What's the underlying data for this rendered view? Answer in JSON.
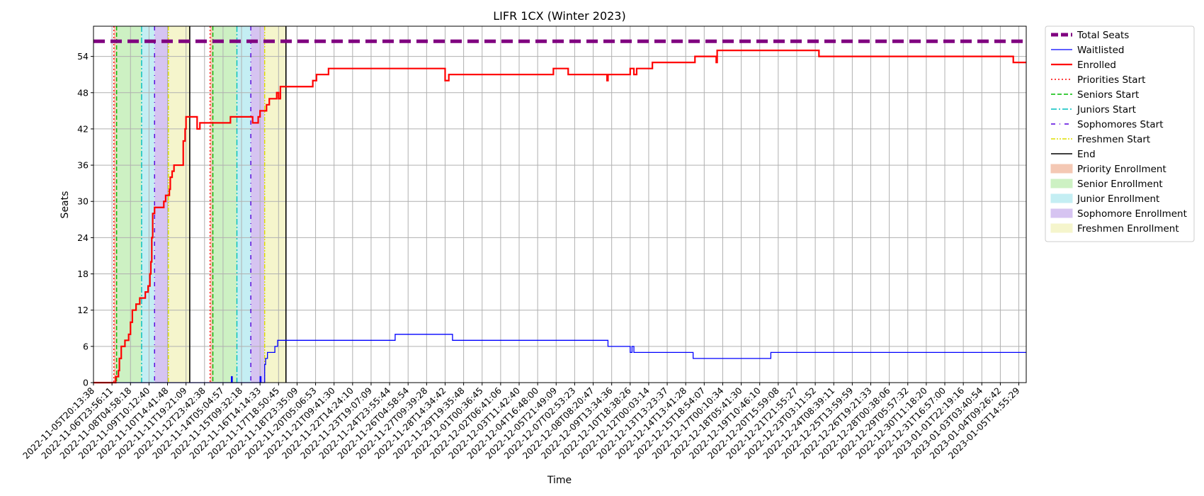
{
  "chart_data": {
    "type": "line",
    "title": "LIFR 1CX (Winter 2023)",
    "xlabel": "Time",
    "ylabel": "Seats",
    "ylim": [
      0,
      59
    ],
    "yticks": [
      0,
      6,
      12,
      18,
      24,
      30,
      36,
      42,
      48,
      54
    ],
    "grid": true,
    "legend_position": "outside-right",
    "x_tick_labels": [
      "2022-11-05T20:13:38",
      "2022-11-06T23:56:11",
      "2022-11-08T04:58:18",
      "2022-11-09T10:12:40",
      "2022-11-10T14:41:48",
      "2022-11-11T19:21:09",
      "2022-11-12T23:42:38",
      "2022-11-14T05:04:57",
      "2022-11-15T09:32:18",
      "2022-11-16T14:14:33",
      "2022-11-17T18:50:45",
      "2022-11-18T23:35:09",
      "2022-11-20T05:06:53",
      "2022-11-21T09:41:30",
      "2022-11-22T14:24:10",
      "2022-11-23T19:07:09",
      "2022-11-24T23:55:44",
      "2022-11-26T04:58:54",
      "2022-11-27T09:39:28",
      "2022-11-28T14:34:42",
      "2022-11-29T19:35:48",
      "2022-12-01T00:36:45",
      "2022-12-02T06:41:06",
      "2022-12-03T11:42:40",
      "2022-12-04T16:48:00",
      "2022-12-05T21:49:09",
      "2022-12-07T02:53:23",
      "2022-12-08T08:20:47",
      "2022-12-09T13:34:36",
      "2022-12-10T18:38:26",
      "2022-12-12T00:03:14",
      "2022-12-13T13:23:37",
      "2022-12-14T13:41:28",
      "2022-12-15T18:54:07",
      "2022-12-17T00:10:34",
      "2022-12-18T05:41:30",
      "2022-12-19T10:46:10",
      "2022-12-20T15:59:08",
      "2022-12-21T21:55:27",
      "2022-12-23T03:11:52",
      "2022-12-24T08:39:11",
      "2022-12-25T13:59:59",
      "2022-12-26T19:21:33",
      "2022-12-28T00:38:06",
      "2022-12-29T05:57:32",
      "2022-12-30T11:18:20",
      "2022-12-31T16:57:00",
      "2023-01-01T22:19:16",
      "2023-01-03T03:40:54",
      "2023-01-04T09:26:42",
      "2023-01-05T14:55:29"
    ],
    "x_domain": [
      0,
      50.4
    ],
    "total_seats": 56.5,
    "series": [
      {
        "name": "Total Seats",
        "color": "#800080",
        "points": [
          [
            0,
            56.5
          ],
          [
            50.4,
            56.5
          ]
        ]
      },
      {
        "name": "Waitlisted",
        "color": "#0000ff",
        "points": [
          [
            0,
            0
          ],
          [
            7.45,
            0
          ],
          [
            7.45,
            1
          ],
          [
            7.5,
            1
          ],
          [
            7.5,
            0
          ],
          [
            9.0,
            0
          ],
          [
            9.0,
            1
          ],
          [
            9.05,
            1
          ],
          [
            9.05,
            0
          ],
          [
            9.25,
            0
          ],
          [
            9.25,
            3
          ],
          [
            9.3,
            3
          ],
          [
            9.3,
            4
          ],
          [
            9.4,
            4
          ],
          [
            9.4,
            5
          ],
          [
            9.8,
            5
          ],
          [
            9.8,
            6
          ],
          [
            9.95,
            6
          ],
          [
            9.95,
            7
          ],
          [
            16.3,
            7
          ],
          [
            16.3,
            8
          ],
          [
            19.4,
            8
          ],
          [
            19.4,
            7
          ],
          [
            27.8,
            7
          ],
          [
            27.8,
            6
          ],
          [
            29.0,
            6
          ],
          [
            29.0,
            5
          ],
          [
            29.1,
            5
          ],
          [
            29.1,
            6
          ],
          [
            29.2,
            6
          ],
          [
            29.2,
            5
          ],
          [
            32.4,
            5
          ],
          [
            32.4,
            4
          ],
          [
            36.6,
            4
          ],
          [
            36.6,
            5
          ],
          [
            50.4,
            5
          ]
        ]
      },
      {
        "name": "Enrolled",
        "color": "#ff0000",
        "points": [
          [
            0,
            0
          ],
          [
            1.2,
            0
          ],
          [
            1.2,
            1
          ],
          [
            1.35,
            1
          ],
          [
            1.35,
            2
          ],
          [
            1.4,
            2
          ],
          [
            1.4,
            4
          ],
          [
            1.5,
            4
          ],
          [
            1.5,
            6
          ],
          [
            1.7,
            6
          ],
          [
            1.7,
            7
          ],
          [
            1.9,
            7
          ],
          [
            1.9,
            8
          ],
          [
            2.0,
            8
          ],
          [
            2.0,
            10
          ],
          [
            2.1,
            10
          ],
          [
            2.1,
            12
          ],
          [
            2.3,
            12
          ],
          [
            2.3,
            13
          ],
          [
            2.5,
            13
          ],
          [
            2.5,
            14
          ],
          [
            2.8,
            14
          ],
          [
            2.8,
            15
          ],
          [
            2.95,
            15
          ],
          [
            2.95,
            16
          ],
          [
            3.05,
            16
          ],
          [
            3.05,
            18
          ],
          [
            3.1,
            18
          ],
          [
            3.1,
            20
          ],
          [
            3.15,
            20
          ],
          [
            3.15,
            24
          ],
          [
            3.2,
            24
          ],
          [
            3.2,
            28
          ],
          [
            3.3,
            28
          ],
          [
            3.3,
            29
          ],
          [
            3.45,
            29
          ],
          [
            3.8,
            29
          ],
          [
            3.8,
            30
          ],
          [
            3.9,
            30
          ],
          [
            3.9,
            31
          ],
          [
            4.1,
            31
          ],
          [
            4.1,
            32
          ],
          [
            4.15,
            32
          ],
          [
            4.15,
            34
          ],
          [
            4.25,
            34
          ],
          [
            4.25,
            35
          ],
          [
            4.35,
            35
          ],
          [
            4.35,
            36
          ],
          [
            4.7,
            36
          ],
          [
            4.85,
            36
          ],
          [
            4.85,
            40
          ],
          [
            4.95,
            40
          ],
          [
            4.95,
            42
          ],
          [
            5.0,
            42
          ],
          [
            5.0,
            44
          ],
          [
            5.6,
            44
          ],
          [
            5.6,
            42
          ],
          [
            5.75,
            42
          ],
          [
            5.75,
            43
          ],
          [
            7.4,
            43
          ],
          [
            7.4,
            44
          ],
          [
            8.6,
            44
          ],
          [
            8.6,
            43
          ],
          [
            8.9,
            43
          ],
          [
            8.9,
            44
          ],
          [
            9.0,
            44
          ],
          [
            9.0,
            45
          ],
          [
            9.35,
            45
          ],
          [
            9.35,
            46
          ],
          [
            9.5,
            46
          ],
          [
            9.5,
            47
          ],
          [
            9.9,
            47
          ],
          [
            9.9,
            48
          ],
          [
            10.0,
            48
          ],
          [
            10.0,
            47
          ],
          [
            10.1,
            47
          ],
          [
            10.1,
            49
          ],
          [
            11.85,
            49
          ],
          [
            11.85,
            50
          ],
          [
            12.05,
            50
          ],
          [
            12.05,
            51
          ],
          [
            12.7,
            51
          ],
          [
            12.7,
            52
          ],
          [
            19.0,
            52
          ],
          [
            19.0,
            50
          ],
          [
            19.2,
            50
          ],
          [
            19.2,
            51
          ],
          [
            24.85,
            51
          ],
          [
            24.85,
            52
          ],
          [
            25.65,
            52
          ],
          [
            25.65,
            51
          ],
          [
            27.75,
            51
          ],
          [
            27.75,
            50
          ],
          [
            27.8,
            50
          ],
          [
            27.8,
            51
          ],
          [
            29.0,
            51
          ],
          [
            29.0,
            52
          ],
          [
            29.2,
            52
          ],
          [
            29.2,
            51
          ],
          [
            29.35,
            51
          ],
          [
            29.35,
            52
          ],
          [
            30.2,
            52
          ],
          [
            30.2,
            53
          ],
          [
            32.5,
            53
          ],
          [
            32.5,
            54
          ],
          [
            33.65,
            54
          ],
          [
            33.65,
            53
          ],
          [
            33.7,
            53
          ],
          [
            33.7,
            55
          ],
          [
            39.2,
            55
          ],
          [
            39.2,
            54
          ],
          [
            49.7,
            54
          ],
          [
            49.7,
            53
          ],
          [
            50.4,
            53
          ]
        ]
      }
    ],
    "phase_markers": [
      {
        "name": "Priorities Start",
        "color": "#ff0000",
        "x": [
          1.1,
          6.3
        ]
      },
      {
        "name": "Seniors Start",
        "color": "#00bb00",
        "x": [
          1.25,
          6.45
        ]
      },
      {
        "name": "Juniors Start",
        "color": "#00bfbf",
        "x": [
          2.6,
          7.75
        ]
      },
      {
        "name": "Sophomores Start",
        "color": "#5500dd",
        "x": [
          3.3,
          8.5
        ]
      },
      {
        "name": "Freshmen Start",
        "color": "#dddd00",
        "x": [
          4.05,
          9.25
        ]
      },
      {
        "name": "End",
        "color": "#000000",
        "x": [
          5.2,
          10.4
        ]
      }
    ],
    "enrollment_windows": [
      {
        "name": "Priority Enrollment",
        "color": "#f4c8b4",
        "ranges": [
          [
            1.1,
            1.25
          ],
          [
            6.3,
            6.45
          ]
        ]
      },
      {
        "name": "Senior Enrollment",
        "color": "#cdf1c3",
        "ranges": [
          [
            1.25,
            2.6
          ],
          [
            6.45,
            7.75
          ]
        ]
      },
      {
        "name": "Junior Enrollment",
        "color": "#c4eef3",
        "ranges": [
          [
            2.6,
            3.3
          ],
          [
            7.75,
            8.5
          ]
        ]
      },
      {
        "name": "Sophomore Enrollment",
        "color": "#d6c4f1",
        "ranges": [
          [
            3.3,
            4.05
          ],
          [
            8.5,
            9.25
          ]
        ]
      },
      {
        "name": "Freshmen Enrollment",
        "color": "#f5f5cc",
        "ranges": [
          [
            4.05,
            5.2
          ],
          [
            9.25,
            10.4
          ]
        ]
      }
    ],
    "legend": [
      {
        "label": "Total Seats",
        "kind": "line",
        "color": "#800080",
        "style": "dashed-thick"
      },
      {
        "label": "Waitlisted",
        "kind": "line",
        "color": "#0000ff",
        "style": "solid-thin"
      },
      {
        "label": "Enrolled",
        "kind": "line",
        "color": "#ff0000",
        "style": "solid-thick"
      },
      {
        "label": "Priorities Start",
        "kind": "line",
        "color": "#ff0000",
        "style": "dotted"
      },
      {
        "label": "Seniors Start",
        "kind": "line",
        "color": "#00bb00",
        "style": "dashed"
      },
      {
        "label": "Juniors Start",
        "kind": "line",
        "color": "#00bfbf",
        "style": "dashdot"
      },
      {
        "label": "Sophomores Start",
        "kind": "line",
        "color": "#5500dd",
        "style": "loosedash"
      },
      {
        "label": "Freshmen Start",
        "kind": "line",
        "color": "#dddd00",
        "style": "dashdotdot"
      },
      {
        "label": "End",
        "kind": "line",
        "color": "#000000",
        "style": "solid"
      },
      {
        "label": "Priority Enrollment",
        "kind": "patch",
        "color": "#f4c8b4"
      },
      {
        "label": "Senior Enrollment",
        "kind": "patch",
        "color": "#cdf1c3"
      },
      {
        "label": "Junior Enrollment",
        "kind": "patch",
        "color": "#c4eef3"
      },
      {
        "label": "Sophomore Enrollment",
        "kind": "patch",
        "color": "#d6c4f1"
      },
      {
        "label": "Freshmen Enrollment",
        "kind": "patch",
        "color": "#f5f5cc"
      }
    ]
  }
}
